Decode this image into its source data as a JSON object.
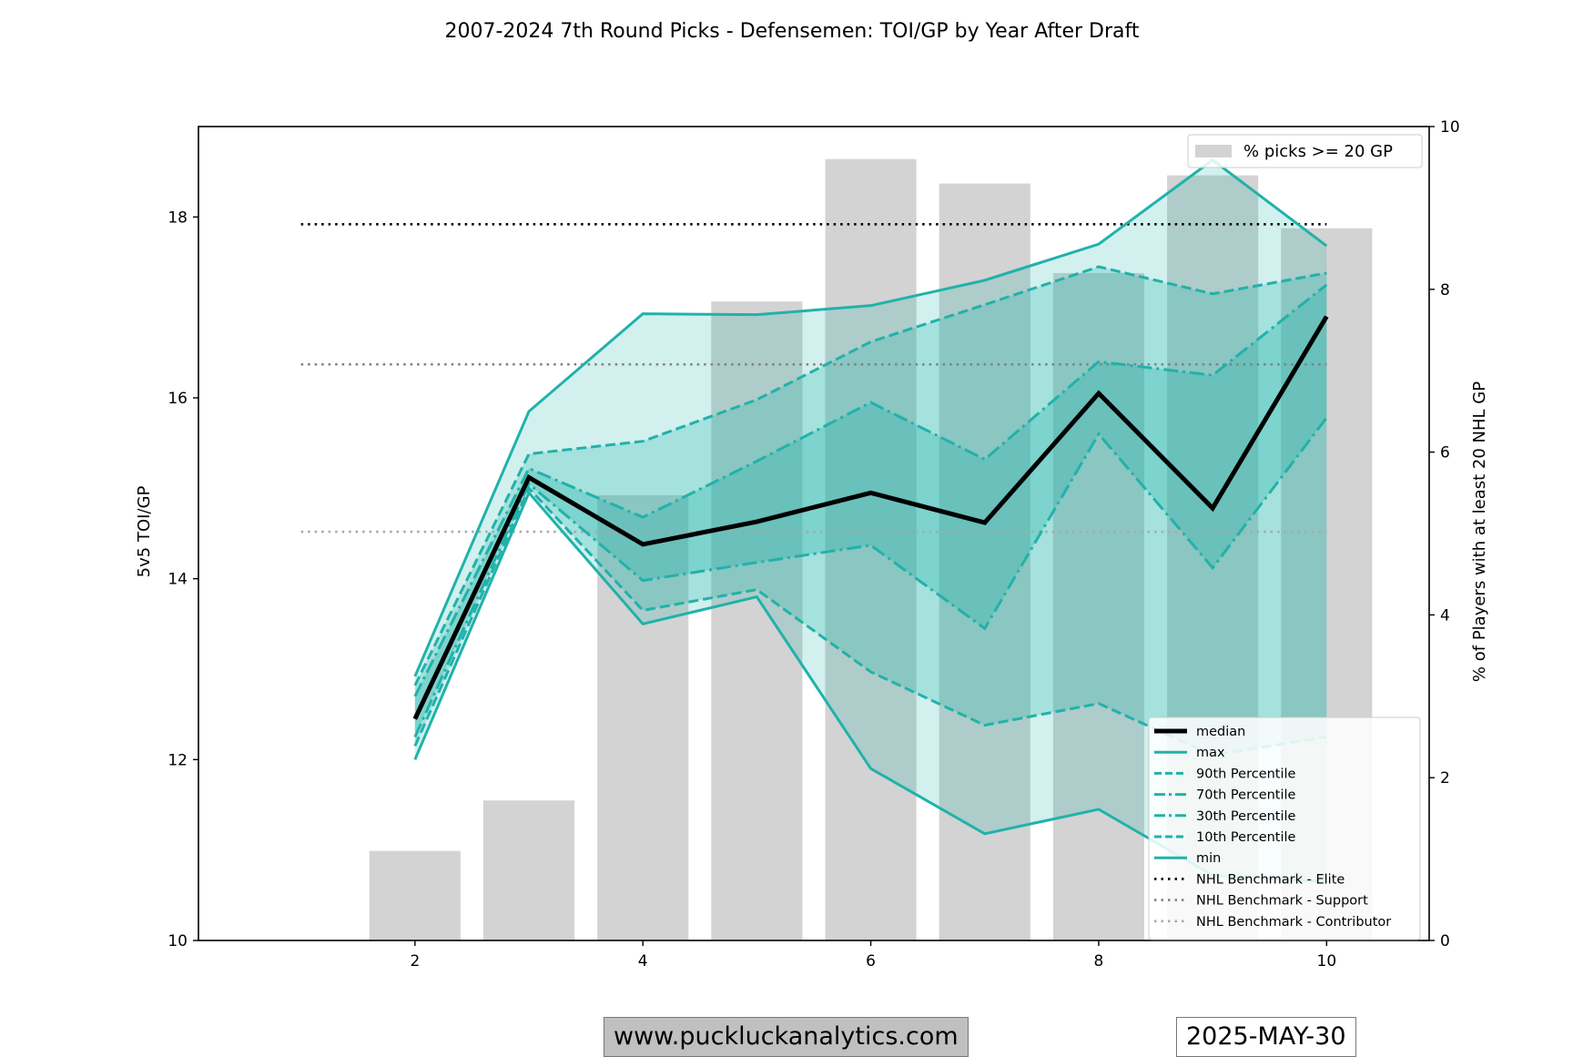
{
  "chart_data": {
    "type": "line",
    "title": "2007-2024 7th Round Picks - Defensemen: TOI/GP by Year After Draft",
    "xlabel": "",
    "ylabel": "5v5 TOI/GP",
    "y2label": "% of Players with at least 20 NHL GP",
    "xlim": [
      0.1,
      10.9
    ],
    "ylim": [
      10,
      19.0
    ],
    "y2lim": [
      0,
      10.0
    ],
    "x_ticks": [
      2,
      4,
      6,
      8,
      10
    ],
    "y_ticks": [
      10,
      12,
      14,
      16,
      18
    ],
    "y2_ticks": [
      0,
      2,
      4,
      6,
      8,
      10
    ],
    "x": [
      2,
      3,
      4,
      5,
      6,
      7,
      8,
      9,
      10
    ],
    "bars": {
      "name": "% picks >= 20 GP",
      "x": [
        2,
        3,
        4,
        5,
        6,
        7,
        8,
        9,
        10
      ],
      "values": [
        1.1,
        1.72,
        5.47,
        7.85,
        9.6,
        9.3,
        8.2,
        9.4,
        8.75
      ]
    },
    "series": [
      {
        "name": "median",
        "values": [
          12.45,
          15.12,
          14.38,
          14.63,
          14.95,
          14.62,
          16.05,
          14.78,
          16.9
        ]
      },
      {
        "name": "max",
        "values": [
          12.92,
          15.85,
          16.93,
          16.92,
          17.02,
          17.3,
          17.7,
          18.63,
          17.68
        ]
      },
      {
        "name": "90th Percentile",
        "values": [
          12.82,
          15.38,
          15.52,
          15.98,
          16.62,
          17.03,
          17.45,
          17.15,
          17.38
        ]
      },
      {
        "name": "70th Percentile",
        "values": [
          12.7,
          15.22,
          14.68,
          15.3,
          15.95,
          15.32,
          16.4,
          16.25,
          17.25
        ]
      },
      {
        "name": "30th Percentile",
        "values": [
          12.25,
          15.05,
          13.98,
          14.18,
          14.37,
          13.45,
          15.6,
          14.12,
          15.78
        ]
      },
      {
        "name": "10th Percentile",
        "values": [
          12.15,
          15.0,
          13.65,
          13.88,
          12.97,
          12.38,
          12.62,
          12.05,
          12.25
        ]
      },
      {
        "name": "min",
        "values": [
          12.0,
          14.95,
          13.5,
          13.8,
          11.9,
          11.18,
          11.45,
          10.72,
          10.65
        ]
      }
    ],
    "benchmarks": [
      {
        "name": "NHL Benchmark - Elite",
        "value": 17.92
      },
      {
        "name": "NHL Benchmark - Support",
        "value": 16.37
      },
      {
        "name": "NHL Benchmark - Contributor",
        "value": 14.52
      }
    ],
    "legend_position": "bottom-right",
    "bar_legend_position": "top-right"
  },
  "colors": {
    "teal": "#20b2aa",
    "bar": "#d3d3d3",
    "median": "#000000",
    "elite": "#000000",
    "support": "#808080",
    "contributor": "#a9a9a9"
  },
  "footer": {
    "website": "www.puckluckanalytics.com",
    "date": "2025-MAY-30"
  }
}
